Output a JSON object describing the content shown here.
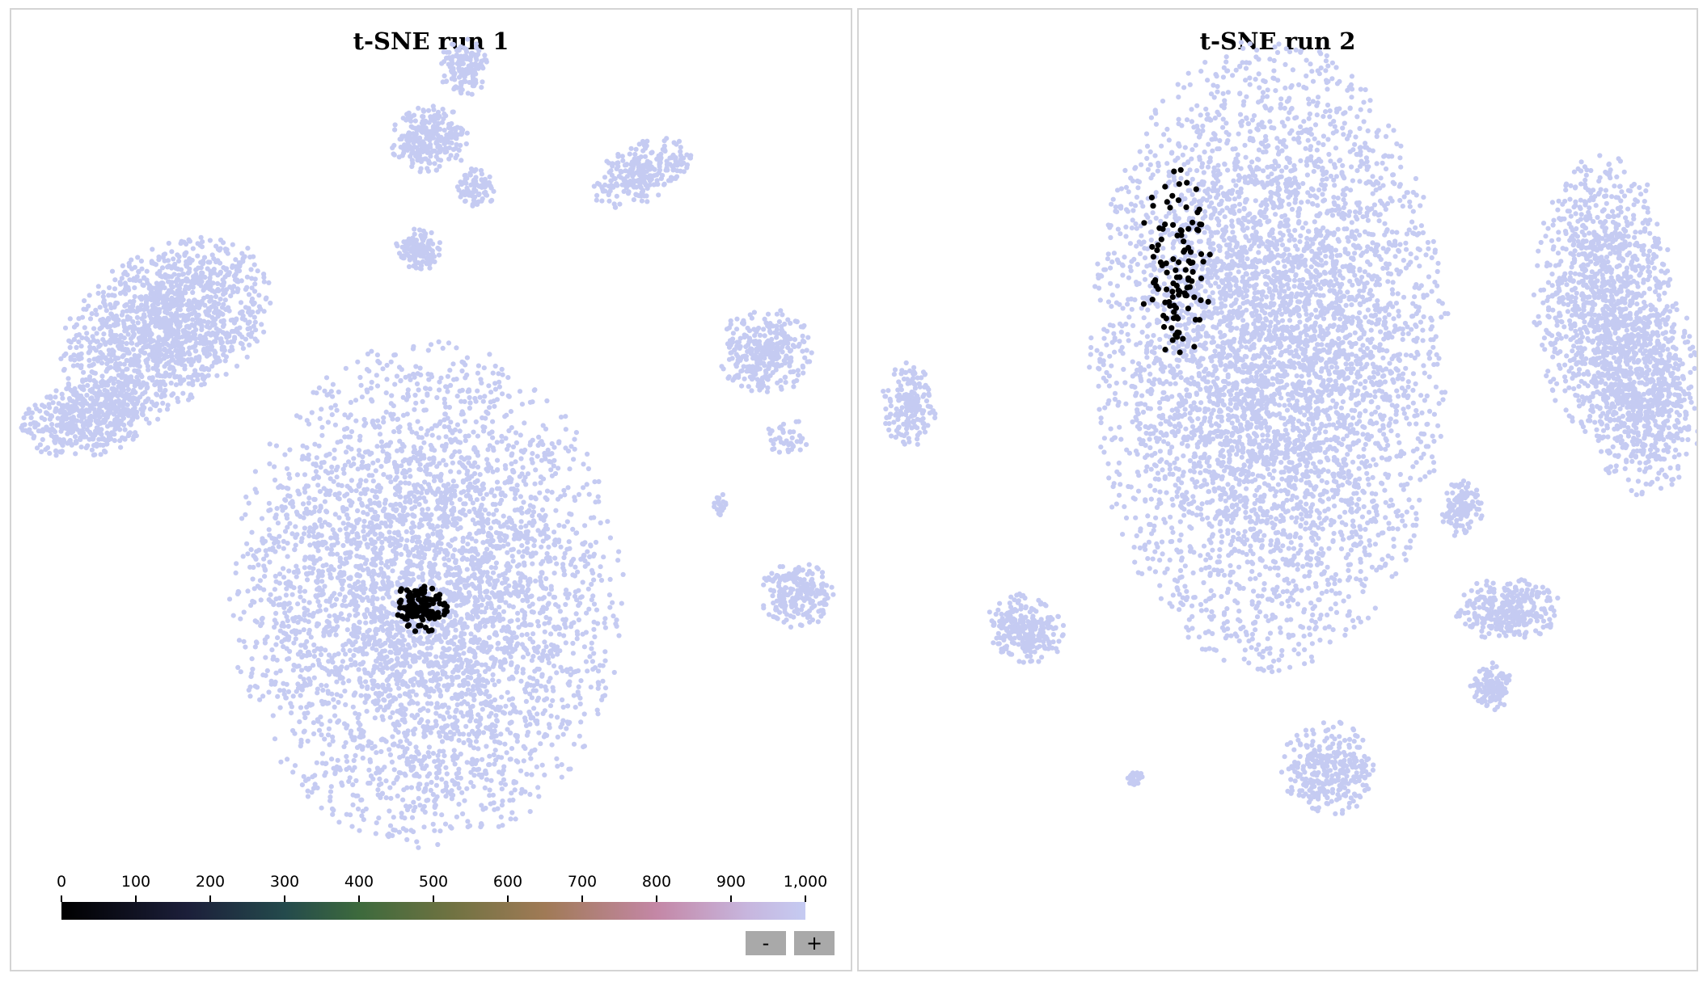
{
  "chart_data": [
    {
      "type": "scatter",
      "title": "t-SNE run 1",
      "point_color": "#c5cbf2",
      "highlight_color": "#000000",
      "clusters": [
        {
          "cx": 0.495,
          "cy": 0.61,
          "rx": 0.235,
          "ry": 0.265,
          "n": 4200,
          "value": 1000
        },
        {
          "cx": 0.185,
          "cy": 0.33,
          "rx": 0.14,
          "ry": 0.08,
          "n": 1400,
          "value": 1000,
          "rot": -0.55
        },
        {
          "cx": 0.095,
          "cy": 0.425,
          "rx": 0.085,
          "ry": 0.04,
          "n": 500,
          "value": 1000,
          "rot": -0.2
        },
        {
          "cx": 0.54,
          "cy": 0.06,
          "rx": 0.03,
          "ry": 0.03,
          "n": 150,
          "value": 1000
        },
        {
          "cx": 0.5,
          "cy": 0.135,
          "rx": 0.05,
          "ry": 0.035,
          "n": 260,
          "value": 1000
        },
        {
          "cx": 0.555,
          "cy": 0.185,
          "rx": 0.025,
          "ry": 0.02,
          "n": 90,
          "value": 1000
        },
        {
          "cx": 0.485,
          "cy": 0.25,
          "rx": 0.028,
          "ry": 0.022,
          "n": 130,
          "value": 1000
        },
        {
          "cx": 0.75,
          "cy": 0.17,
          "rx": 0.065,
          "ry": 0.03,
          "n": 260,
          "value": 1000,
          "rot": -0.45
        },
        {
          "cx": 0.9,
          "cy": 0.355,
          "rx": 0.06,
          "ry": 0.045,
          "n": 320,
          "value": 1000
        },
        {
          "cx": 0.925,
          "cy": 0.445,
          "rx": 0.025,
          "ry": 0.02,
          "n": 40,
          "value": 1000
        },
        {
          "cx": 0.845,
          "cy": 0.515,
          "rx": 0.008,
          "ry": 0.012,
          "n": 25,
          "value": 1000
        },
        {
          "cx": 0.935,
          "cy": 0.61,
          "rx": 0.045,
          "ry": 0.035,
          "n": 220,
          "value": 1000
        },
        {
          "cx": 0.488,
          "cy": 0.622,
          "rx": 0.032,
          "ry": 0.028,
          "n": 110,
          "value": 0
        }
      ]
    },
    {
      "type": "scatter",
      "title": "t-SNE run 2",
      "point_color": "#c5cbf2",
      "highlight_color": "#000000",
      "clusters": [
        {
          "cx": 0.49,
          "cy": 0.36,
          "rx": 0.215,
          "ry": 0.33,
          "n": 5000,
          "value": 1000
        },
        {
          "cx": 0.89,
          "cy": 0.3,
          "rx": 0.085,
          "ry": 0.15,
          "n": 1100,
          "value": 1000
        },
        {
          "cx": 0.94,
          "cy": 0.4,
          "rx": 0.07,
          "ry": 0.11,
          "n": 700,
          "value": 1000
        },
        {
          "cx": 0.06,
          "cy": 0.41,
          "rx": 0.035,
          "ry": 0.045,
          "n": 180,
          "value": 1000
        },
        {
          "cx": 0.2,
          "cy": 0.645,
          "rx": 0.05,
          "ry": 0.035,
          "n": 260,
          "value": 1000,
          "rot": 0.5
        },
        {
          "cx": 0.72,
          "cy": 0.52,
          "rx": 0.025,
          "ry": 0.03,
          "n": 120,
          "value": 1000
        },
        {
          "cx": 0.775,
          "cy": 0.625,
          "rx": 0.065,
          "ry": 0.035,
          "n": 300,
          "value": 1000
        },
        {
          "cx": 0.755,
          "cy": 0.705,
          "rx": 0.025,
          "ry": 0.025,
          "n": 120,
          "value": 1000
        },
        {
          "cx": 0.56,
          "cy": 0.79,
          "rx": 0.06,
          "ry": 0.05,
          "n": 320,
          "value": 1000
        },
        {
          "cx": 0.33,
          "cy": 0.8,
          "rx": 0.012,
          "ry": 0.008,
          "n": 30,
          "value": 1000
        },
        {
          "cx": 0.38,
          "cy": 0.265,
          "rx": 0.045,
          "ry": 0.1,
          "n": 110,
          "value": 0
        }
      ]
    }
  ],
  "colorbar": {
    "ticks": [
      "0",
      "100",
      "200",
      "300",
      "400",
      "500",
      "600",
      "700",
      "800",
      "900",
      "1,000"
    ],
    "min": 0,
    "max": 1000
  },
  "zoom": {
    "minus_label": "-",
    "plus_label": "+"
  }
}
